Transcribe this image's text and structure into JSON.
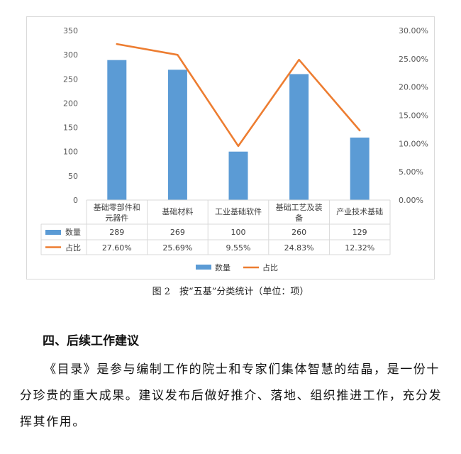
{
  "chart_data": {
    "type": "bar",
    "categories": [
      "基础零部件和元器件",
      "基础材料",
      "工业基础软件",
      "基础工艺及装备",
      "产业技术基础"
    ],
    "category_lines": [
      [
        "基础零部件和",
        "元器件"
      ],
      [
        "基础材料"
      ],
      [
        "工业基础软件"
      ],
      [
        "基础工艺及装",
        "备"
      ],
      [
        "产业技术基础"
      ]
    ],
    "series": [
      {
        "name": "数量",
        "type": "bar",
        "axis": "left",
        "color": "#5B9BD5",
        "values": [
          289,
          269,
          100,
          260,
          129
        ],
        "labels": [
          "289",
          "269",
          "100",
          "260",
          "129"
        ]
      },
      {
        "name": "占比",
        "type": "line",
        "axis": "right",
        "color": "#ED7D31",
        "values": [
          27.6,
          25.69,
          9.55,
          24.83,
          12.32
        ],
        "labels": [
          "27.60%",
          "25.69%",
          "9.55%",
          "24.83%",
          "12.32%"
        ]
      }
    ],
    "y_left": {
      "ylim": [
        0,
        350
      ],
      "ticks": [
        "0",
        "50",
        "100",
        "150",
        "200",
        "250",
        "300",
        "350"
      ]
    },
    "y_right": {
      "ylim": [
        0,
        30
      ],
      "ticks": [
        "0.00%",
        "5.00%",
        "10.00%",
        "15.00%",
        "20.00%",
        "25.00%",
        "30.00%"
      ]
    },
    "grid": false,
    "legend": "bottom",
    "data_table": true
  },
  "caption": "图 2　按“五基”分类统计（单位：项）",
  "section_heading": "四、后续工作建议",
  "body_text": "《目录》是参与编制工作的院士和专家们集体智慧的结晶，是一份十分珍贵的重大成果。建议发布后做好推介、落地、组织推进工作，充分发挥其作用。"
}
